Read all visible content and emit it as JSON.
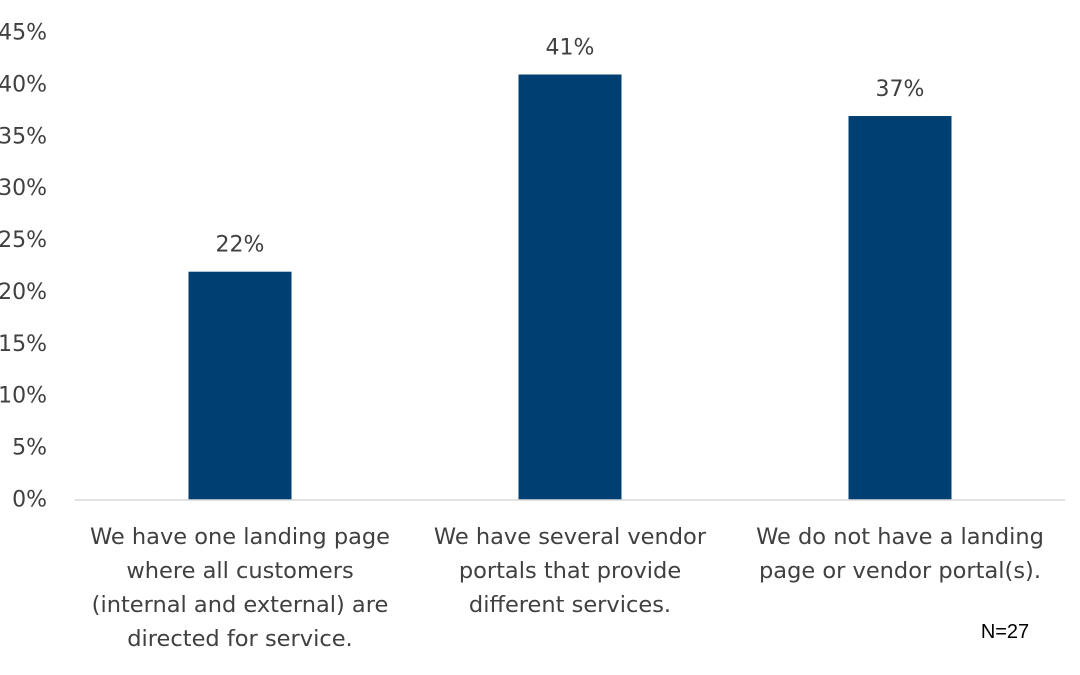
{
  "chart_data": {
    "type": "bar",
    "categories": [
      [
        "We have one landing page",
        "where all customers",
        "(internal and external) are",
        "directed for service."
      ],
      [
        "We have several vendor",
        "portals that provide",
        "different services."
      ],
      [
        "We do not have a landing",
        "page or vendor portal(s)."
      ]
    ],
    "values": [
      22,
      41,
      37
    ],
    "value_labels": [
      "22%",
      "41%",
      "37%"
    ],
    "ylim": [
      0,
      45
    ],
    "y_ticks": [
      0,
      5,
      10,
      15,
      20,
      25,
      30,
      35,
      40,
      45
    ],
    "y_tick_labels": [
      "0%",
      "5%",
      "10%",
      "15%",
      "20%",
      "25%",
      "30%",
      "35%",
      "40%",
      "45%"
    ],
    "bar_color": "#003f72",
    "grid": false,
    "legend": "none"
  },
  "note": "N=27"
}
